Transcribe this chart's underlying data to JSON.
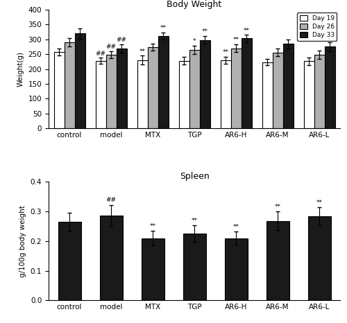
{
  "groups": [
    "control",
    "model",
    "MTX",
    "TGP",
    "AR6-H",
    "AR6-M",
    "AR6-L"
  ],
  "bw_day19": [
    258,
    228,
    230,
    228,
    230,
    223,
    226
  ],
  "bw_day26": [
    290,
    248,
    273,
    265,
    270,
    256,
    248
  ],
  "bw_day33": [
    320,
    270,
    312,
    298,
    303,
    285,
    275
  ],
  "bw_err19": [
    12,
    10,
    15,
    13,
    12,
    10,
    12
  ],
  "bw_err26": [
    15,
    12,
    12,
    14,
    13,
    12,
    13
  ],
  "bw_err33": [
    18,
    14,
    12,
    13,
    12,
    15,
    15
  ],
  "bw_annot19": [
    "",
    "##",
    "**",
    "",
    "**",
    "",
    ""
  ],
  "bw_annot26": [
    "",
    "##",
    "",
    "*",
    "**",
    "",
    ""
  ],
  "bw_annot33": [
    "",
    "##",
    "**",
    "**",
    "**",
    "",
    ""
  ],
  "sp_values": [
    0.265,
    0.287,
    0.21,
    0.225,
    0.21,
    0.268,
    0.283
  ],
  "sp_errors": [
    0.03,
    0.035,
    0.025,
    0.028,
    0.022,
    0.032,
    0.03
  ],
  "sp_annots": [
    "",
    "##",
    "**",
    "**",
    "**",
    "**",
    "**"
  ],
  "color_day19": "#ffffff",
  "color_day26": "#b0b0b0",
  "color_day33": "#1a1a1a",
  "color_spleen": "#1a1a1a",
  "bw_title": "Body Weight",
  "sp_title": "Spleen",
  "bw_ylabel": "Weight(g)",
  "sp_ylabel": "g/100g body weight",
  "bw_ylim": [
    0,
    400
  ],
  "sp_ylim": [
    0.0,
    0.4
  ],
  "bw_yticks": [
    0,
    50,
    100,
    150,
    200,
    250,
    300,
    350,
    400
  ],
  "sp_yticks": [
    0.0,
    0.1,
    0.2,
    0.3,
    0.4
  ]
}
